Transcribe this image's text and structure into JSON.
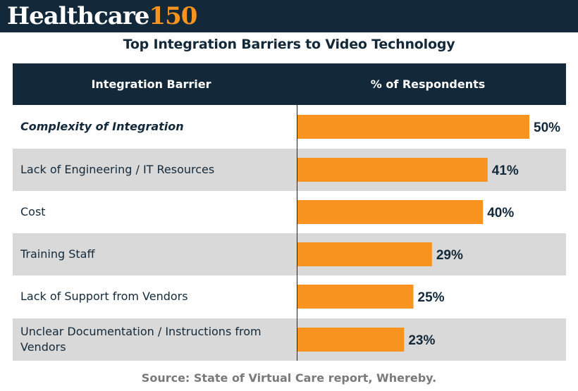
{
  "brand": {
    "name_part1": "Healthcare",
    "name_part2": "150"
  },
  "colors": {
    "navy": "#13293a",
    "orange": "#f7931e",
    "row_shade": "#d9d9d9",
    "source_gray": "#7a7a7a"
  },
  "chart_data": {
    "type": "bar",
    "orientation": "horizontal",
    "title": "Top Integration Barriers to Video Technology",
    "column_headers": [
      "Integration Barrier",
      "% of Respondents"
    ],
    "categories": [
      "Complexity of Integration",
      "Lack of Engineering / IT Resources",
      "Cost",
      "Training Staff",
      "Lack of Support from Vendors",
      "Unclear Documentation / Instructions from Vendors"
    ],
    "values": [
      50,
      41,
      40,
      29,
      25,
      23
    ],
    "value_labels": [
      "50%",
      "41%",
      "40%",
      "29%",
      "25%",
      "23%"
    ],
    "unit": "%",
    "xlim": [
      0,
      50
    ]
  },
  "source": "Source: State of Virtual Care report, Whereby."
}
